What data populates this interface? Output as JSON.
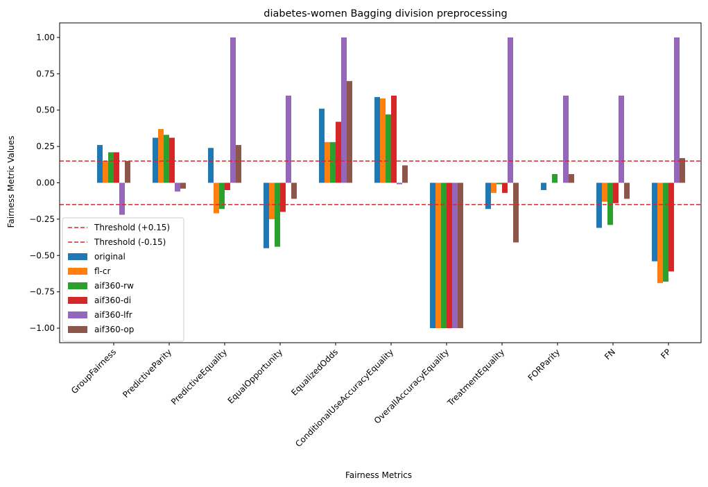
{
  "chart_data": {
    "type": "bar",
    "title": "diabetes-women Bagging division preprocessing",
    "xlabel": "Fairness Metrics",
    "ylabel": "Fairness Metric Values",
    "ylim": [
      -1.1,
      1.1
    ],
    "yticks": [
      1.0,
      0.75,
      0.5,
      0.25,
      0.0,
      -0.25,
      -0.5,
      -0.75,
      -1.0
    ],
    "ytick_labels": [
      "1.00",
      "0.75",
      "0.50",
      "0.25",
      "0.00",
      "−0.25",
      "−0.50",
      "−0.75",
      "−1.00"
    ],
    "grid": false,
    "legend_position": "lower-left",
    "categories": [
      "GroupFairness",
      "PredictiveParity",
      "PredictiveEquality",
      "EqualOpportunity",
      "EqualizedOdds",
      "ConditionalUseAccuracyEquality",
      "OverallAccuracyEquality",
      "TreatmentEquality",
      "FORParity",
      "FN",
      "FP"
    ],
    "thresholds": [
      {
        "name": "Threshold (+0.15)",
        "value": 0.15,
        "color": "#d62728"
      },
      {
        "name": "Threshold (-0.15)",
        "value": -0.15,
        "color": "#d62728"
      }
    ],
    "series": [
      {
        "name": "original",
        "color": "#1f77b4",
        "values": [
          0.26,
          0.31,
          0.24,
          -0.45,
          0.51,
          0.59,
          -1.0,
          -0.18,
          -0.05,
          -0.31,
          -0.54
        ]
      },
      {
        "name": "fl-cr",
        "color": "#ff7f0e",
        "values": [
          0.15,
          0.37,
          -0.21,
          -0.25,
          0.28,
          0.58,
          -1.0,
          -0.07,
          0.0,
          -0.13,
          -0.69
        ]
      },
      {
        "name": "aif360-rw",
        "color": "#2ca02c",
        "values": [
          0.21,
          0.33,
          -0.18,
          -0.44,
          0.28,
          0.47,
          -1.0,
          -0.01,
          0.06,
          -0.29,
          -0.68
        ]
      },
      {
        "name": "aif360-di",
        "color": "#d62728",
        "values": [
          0.21,
          0.31,
          -0.05,
          -0.2,
          0.42,
          0.6,
          -1.0,
          -0.07,
          0.0,
          -0.14,
          -0.61
        ]
      },
      {
        "name": "aif360-lfr",
        "color": "#9467bd",
        "values": [
          -0.22,
          -0.06,
          1.0,
          0.6,
          1.0,
          -0.01,
          -1.0,
          1.0,
          0.6,
          0.6,
          1.0
        ]
      },
      {
        "name": "aif360-op",
        "color": "#8c564b",
        "values": [
          0.15,
          -0.04,
          0.26,
          -0.11,
          0.7,
          0.12,
          -1.0,
          -0.41,
          0.06,
          -0.11,
          0.17
        ]
      }
    ]
  }
}
